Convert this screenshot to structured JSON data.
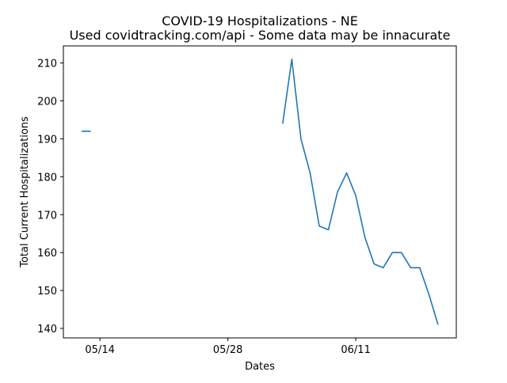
{
  "chart_data": {
    "type": "line",
    "title": "COVID-19 Hospitalizations - NE",
    "subtitle": "Used covidtracking.com/api - Some data may be innacurate",
    "xlabel": "Dates",
    "ylabel": "Total Current Hospitalizations",
    "x_tick_labels": [
      "05/14",
      "05/28",
      "06/11"
    ],
    "x_tick_dates": [
      "2020-05-14",
      "2020-05-28",
      "2020-06-11"
    ],
    "xlim": [
      "2020-05-10",
      "2020-06-22"
    ],
    "y_ticks": [
      140,
      150,
      160,
      170,
      180,
      190,
      200,
      210
    ],
    "ylim": [
      137.5,
      214.5
    ],
    "grid": false,
    "legend": false,
    "line_color": "#1f77b4",
    "series": [
      {
        "points": [
          {
            "x": "2020-05-12",
            "y": 192
          },
          {
            "x": "2020-05-13",
            "y": 192
          },
          {
            "x": "2020-05-14",
            "y": null
          },
          {
            "x": "2020-06-02",
            "y": null
          },
          {
            "x": "2020-06-03",
            "y": 194
          },
          {
            "x": "2020-06-04",
            "y": 211
          },
          {
            "x": "2020-06-05",
            "y": 190
          },
          {
            "x": "2020-06-06",
            "y": 181
          },
          {
            "x": "2020-06-07",
            "y": 167
          },
          {
            "x": "2020-06-08",
            "y": 166
          },
          {
            "x": "2020-06-09",
            "y": 176
          },
          {
            "x": "2020-06-10",
            "y": 181
          },
          {
            "x": "2020-06-11",
            "y": 175
          },
          {
            "x": "2020-06-12",
            "y": 164
          },
          {
            "x": "2020-06-13",
            "y": 157
          },
          {
            "x": "2020-06-14",
            "y": 156
          },
          {
            "x": "2020-06-15",
            "y": 160
          },
          {
            "x": "2020-06-16",
            "y": 160
          },
          {
            "x": "2020-06-17",
            "y": 156
          },
          {
            "x": "2020-06-18",
            "y": 156
          },
          {
            "x": "2020-06-19",
            "y": 149
          },
          {
            "x": "2020-06-20",
            "y": 141
          }
        ]
      }
    ]
  }
}
